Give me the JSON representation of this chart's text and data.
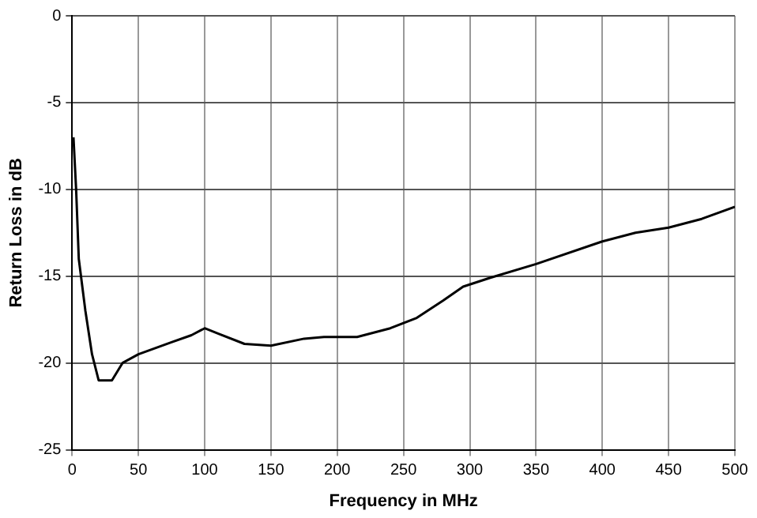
{
  "chart_data": {
    "type": "line",
    "xlabel": "Frequency in MHz",
    "ylabel": "Return Loss in dB",
    "x": [
      1,
      3,
      5,
      10,
      15,
      20,
      30,
      38,
      50,
      75,
      90,
      100,
      110,
      130,
      150,
      175,
      190,
      215,
      240,
      260,
      280,
      295,
      315,
      350,
      400,
      425,
      450,
      475,
      500
    ],
    "series": [
      {
        "color": "#000000",
        "values": [
          -7,
          -10,
          -14,
          -17,
          -19.5,
          -21,
          -21,
          -20,
          -19.5,
          -18.8,
          -18.4,
          -18,
          -18.3,
          -18.9,
          -19,
          -18.6,
          -18.5,
          -18.5,
          -18,
          -17.4,
          -16.4,
          -15.6,
          -15.1,
          -14.3,
          -13,
          -12.5,
          -12.2,
          -11.7,
          -11
        ]
      }
    ],
    "xlim": [
      0,
      500
    ],
    "xticks": [
      0,
      50,
      100,
      150,
      200,
      250,
      300,
      350,
      400,
      450,
      500
    ],
    "ylim": [
      -25,
      0
    ],
    "yticks": [
      -25,
      -20,
      -15,
      -10,
      -5,
      0
    ],
    "grid": true,
    "legend": false,
    "marker": "none",
    "line_style": "solid"
  }
}
